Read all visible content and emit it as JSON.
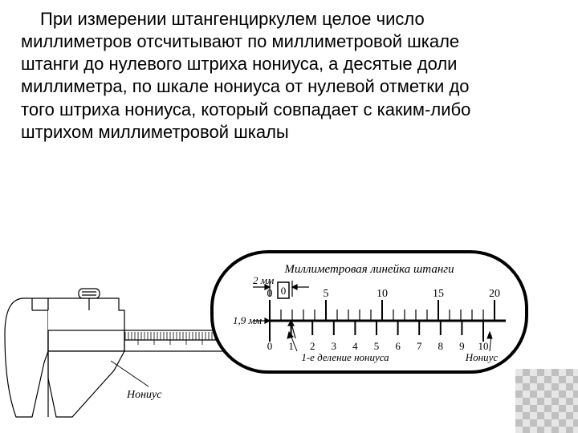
{
  "colors": {
    "text": "#000000",
    "bg": "#ffffff",
    "stroke": "#000000",
    "pattern_light": "#e6e6e6",
    "pattern_dark": "#c0c0c0"
  },
  "paragraph": "При измерении штангенциркулем целое число миллиметров отсчитывают по миллиметровой шкале штанги до нулевого штриха нониуса, а десятые доли миллиметра, по шкале нониуса от нулевой отметки до того штриха нониуса, который совпадает с каким-либо штрихом миллиметровой шкалы",
  "caliper": {
    "label_nonius": "Нониус",
    "main_scale": {
      "start": 0,
      "end": 60,
      "tick_step": 1,
      "major_step": 5
    }
  },
  "vernier_panel": {
    "title": "Миллиметровая линейка штанги",
    "label_2mm": "2 мм",
    "label_19mm": "1,9 мм",
    "main_ticks": [
      0,
      5,
      10,
      15,
      20
    ],
    "main_labels": [
      "0",
      "5",
      "10",
      "15",
      "20"
    ],
    "nonius_ticks": [
      0,
      1,
      2,
      3,
      4,
      5,
      6,
      7,
      8,
      9,
      10
    ],
    "nonius_labels": [
      "0",
      "1",
      "2",
      "3",
      "4",
      "5",
      "6",
      "7",
      "8",
      "9",
      "10"
    ],
    "caption_div1": "1-е деление нониуса",
    "label_nonius": "Нониус"
  }
}
